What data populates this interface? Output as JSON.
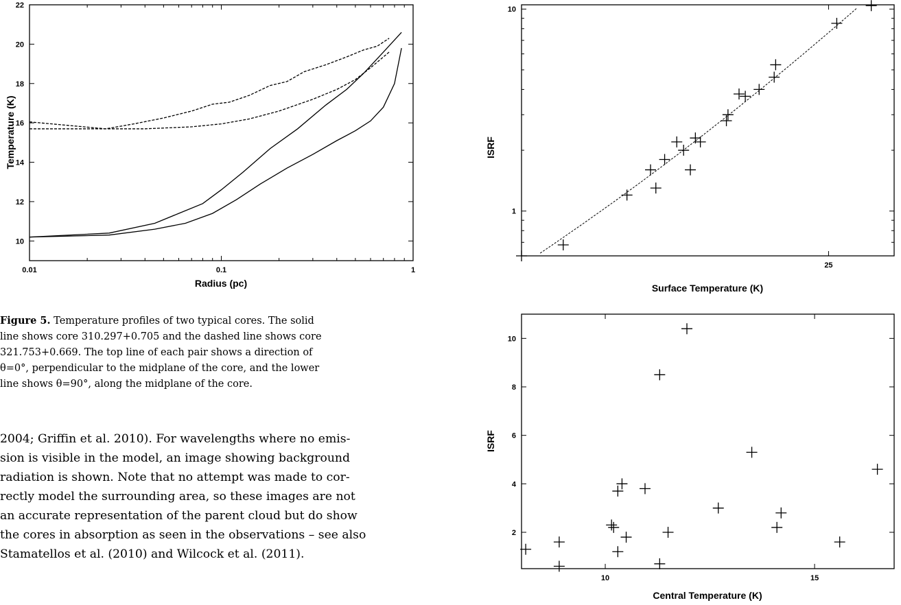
{
  "caption": {
    "label": "Figure 5.",
    "text": "Temperature profiles of two typical cores. The solid line shows core 310.297+0.705 and the dashed line shows core 321.753+0.669. The top line of each pair shows a direction of θ=0°, perpendicular to the midplane of the core, and the lower line shows θ=90°, along the midplane of the core.",
    "lines": [
      "Temperature profiles of two typical cores. The solid",
      "line shows core 310.297+0.705 and the dashed line shows core",
      "321.753+0.669. The top line of each pair shows a direction of",
      "θ=0°, perpendicular to the midplane of the core, and the lower",
      "line shows θ=90°, along the midplane of the core."
    ]
  },
  "body": {
    "lines": [
      "2004; Griffin et al. 2010). For wavelengths where no emis-",
      "sion is visible in the model, an image showing background",
      "radiation is shown. Note that no attempt was made to cor-",
      "rectly model the surrounding area, so these images are not",
      "an accurate representation of the parent cloud but do show",
      "the cores in absorption as seen in the observations – see also",
      "Stamatellos et al. (2010) and Wilcock et al. (2011)."
    ]
  },
  "chart_data": [
    {
      "type": "line",
      "xlabel": "Radius (pc)",
      "ylabel": "Temperature (K)",
      "xscale": "log",
      "xlim": [
        0.01,
        1
      ],
      "ylim": [
        9,
        22
      ],
      "xticks": [
        0.01,
        0.1,
        1
      ],
      "xtick_labels": [
        "0.01",
        "0.1",
        "1"
      ],
      "yticks": [
        10,
        12,
        14,
        16,
        18,
        20,
        22
      ],
      "ytick_labels": [
        "10",
        "12",
        "14",
        "16",
        "18",
        "20",
        "22"
      ],
      "series": [
        {
          "style": "solid",
          "x": [
            0.01,
            0.026,
            0.045,
            0.06,
            0.08,
            0.1,
            0.13,
            0.18,
            0.25,
            0.35,
            0.45,
            0.55,
            0.7,
            0.87
          ],
          "y": [
            10.2,
            10.4,
            10.9,
            11.4,
            11.9,
            12.6,
            13.5,
            14.7,
            15.7,
            16.9,
            17.7,
            18.5,
            19.6,
            20.6
          ]
        },
        {
          "style": "solid",
          "x": [
            0.01,
            0.026,
            0.045,
            0.065,
            0.09,
            0.12,
            0.16,
            0.22,
            0.3,
            0.4,
            0.5,
            0.6,
            0.7,
            0.8,
            0.87
          ],
          "y": [
            10.2,
            10.3,
            10.6,
            10.9,
            11.4,
            12.1,
            12.9,
            13.7,
            14.4,
            15.1,
            15.6,
            16.1,
            16.8,
            18.0,
            19.8
          ]
        },
        {
          "style": "dashed",
          "x": [
            0.01,
            0.025,
            0.035,
            0.05,
            0.07,
            0.09,
            0.11,
            0.14,
            0.18,
            0.22,
            0.27,
            0.35,
            0.45,
            0.55,
            0.65,
            0.75
          ],
          "y": [
            16.05,
            15.7,
            15.95,
            16.25,
            16.6,
            16.95,
            17.05,
            17.4,
            17.9,
            18.1,
            18.6,
            18.95,
            19.35,
            19.7,
            19.9,
            20.3
          ]
        },
        {
          "style": "dashed",
          "x": [
            0.01,
            0.025,
            0.04,
            0.07,
            0.1,
            0.14,
            0.2,
            0.3,
            0.4,
            0.5,
            0.6,
            0.75
          ],
          "y": [
            15.7,
            15.7,
            15.7,
            15.8,
            15.95,
            16.2,
            16.6,
            17.2,
            17.7,
            18.2,
            18.8,
            19.6
          ]
        }
      ]
    },
    {
      "type": "scatter",
      "xlabel": "Surface Temperature (K)",
      "ylabel": "ISRF",
      "xscale": "log",
      "yscale": "log",
      "xlim": [
        16,
        27.5
      ],
      "ylim": [
        0.6,
        10.5
      ],
      "xticks": [
        25
      ],
      "xtick_labels": [
        "25"
      ],
      "yticks": [
        1,
        10
      ],
      "ytick_labels": [
        "1",
        "10"
      ],
      "points": {
        "x": [
          16.0,
          17.0,
          18.65,
          19.3,
          19.45,
          19.7,
          20.05,
          20.25,
          20.45,
          20.6,
          20.75,
          21.55,
          21.6,
          21.95,
          22.15,
          22.6,
          23.1,
          23.15,
          25.3,
          26.6
        ],
        "y": [
          0.6,
          0.68,
          1.2,
          1.6,
          1.3,
          1.8,
          2.2,
          2.0,
          1.6,
          2.3,
          2.2,
          2.8,
          3.0,
          3.8,
          3.7,
          4.0,
          4.6,
          5.3,
          8.5,
          10.4
        ]
      },
      "fit": {
        "style": "dashed"
      }
    },
    {
      "type": "scatter",
      "xlabel": "Central Temperature (K)",
      "ylabel": "ISRF",
      "xlim": [
        8,
        16.9
      ],
      "ylim": [
        0.5,
        11
      ],
      "xticks": [
        10,
        15
      ],
      "xtick_labels": [
        "10",
        "15"
      ],
      "yticks": [
        2,
        4,
        6,
        8,
        10
      ],
      "ytick_labels": [
        "2",
        "4",
        "6",
        "8",
        "10"
      ],
      "points": {
        "x": [
          8.1,
          8.9,
          8.9,
          10.15,
          10.2,
          10.3,
          10.3,
          10.4,
          10.5,
          10.95,
          11.3,
          11.3,
          11.5,
          11.95,
          12.7,
          13.5,
          14.1,
          14.2,
          15.6,
          16.5
        ],
        "y": [
          1.3,
          1.6,
          0.6,
          2.3,
          2.2,
          3.7,
          1.2,
          4.0,
          1.8,
          3.8,
          0.7,
          8.5,
          2.0,
          10.4,
          3.0,
          5.3,
          2.2,
          2.8,
          1.6,
          4.6
        ]
      }
    }
  ]
}
